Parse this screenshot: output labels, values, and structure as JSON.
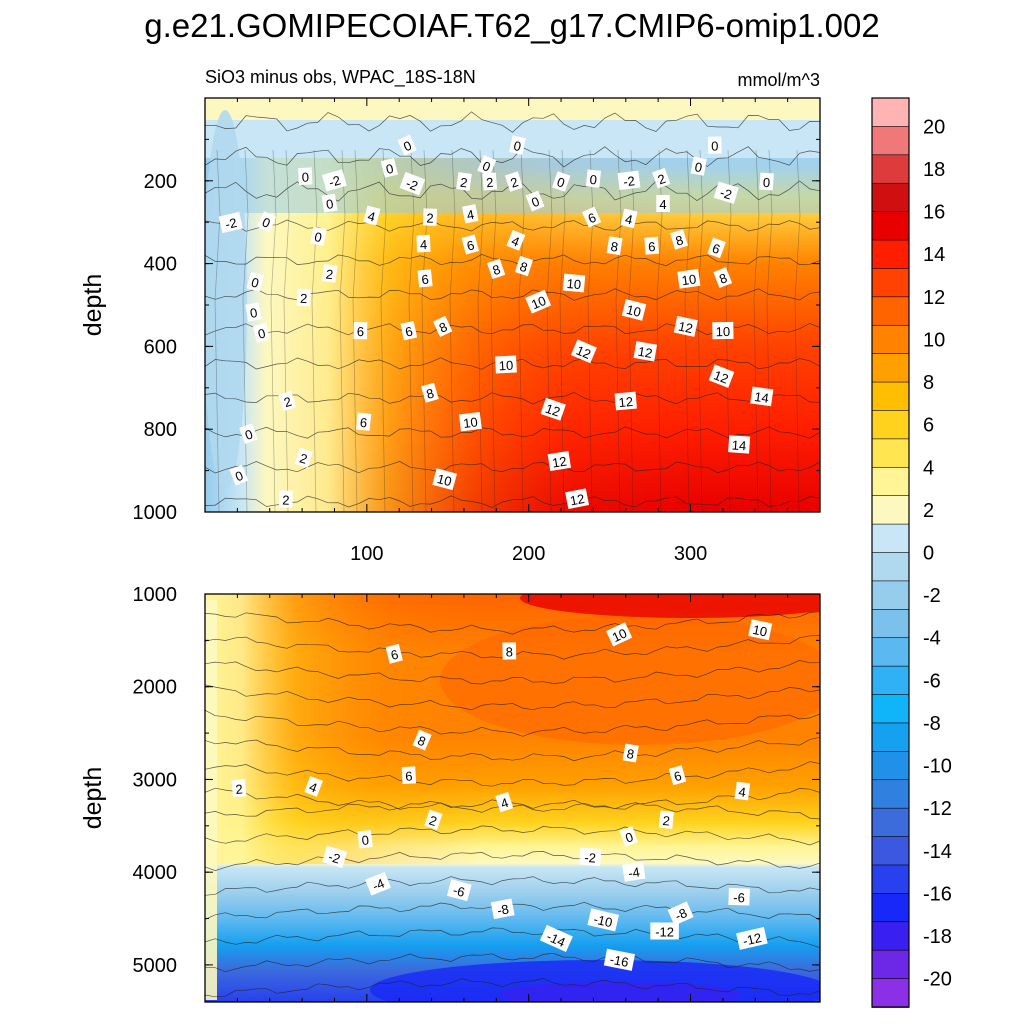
{
  "chart_data": {
    "type": "heatmap",
    "title": "g.e21.GOMIPECOIAF.T62_g17.CMIP6-omip1.002",
    "subtitle_left": "SiO3 minus obs, WPAC_18S-18N",
    "subtitle_right": "mmol/m^3",
    "xlabel": "",
    "xlim": [
      0,
      380
    ],
    "x_ticks": [
      "100",
      "200",
      "300"
    ],
    "panels": [
      {
        "name": "upper",
        "ylabel": "depth",
        "ylim": [
          0,
          1000
        ],
        "y_ticks": [
          "200",
          "400",
          "600",
          "800",
          "1000"
        ],
        "contour_labels": [
          {
            "x": 125,
            "y": 115,
            "v": "0"
          },
          {
            "x": 193,
            "y": 115,
            "v": "0"
          },
          {
            "x": 315,
            "y": 115,
            "v": "0"
          },
          {
            "x": 114,
            "y": 170,
            "v": "0"
          },
          {
            "x": 174,
            "y": 164,
            "v": "0"
          },
          {
            "x": 305,
            "y": 166,
            "v": "0"
          },
          {
            "x": 62,
            "y": 190,
            "v": "0"
          },
          {
            "x": 80,
            "y": 200,
            "v": "-2"
          },
          {
            "x": 128,
            "y": 208,
            "v": "-2"
          },
          {
            "x": 160,
            "y": 203,
            "v": "2"
          },
          {
            "x": 176,
            "y": 203,
            "v": "2"
          },
          {
            "x": 191,
            "y": 203,
            "v": "2"
          },
          {
            "x": 220,
            "y": 203,
            "v": "0"
          },
          {
            "x": 240,
            "y": 196,
            "v": "0"
          },
          {
            "x": 262,
            "y": 200,
            "v": "-2"
          },
          {
            "x": 282,
            "y": 195,
            "v": "2"
          },
          {
            "x": 322,
            "y": 230,
            "v": "-2"
          },
          {
            "x": 347,
            "y": 203,
            "v": "0"
          },
          {
            "x": 77,
            "y": 255,
            "v": "0"
          },
          {
            "x": 204,
            "y": 250,
            "v": "0"
          },
          {
            "x": 103,
            "y": 285,
            "v": "4"
          },
          {
            "x": 139,
            "y": 289,
            "v": "2"
          },
          {
            "x": 164,
            "y": 281,
            "v": "4"
          },
          {
            "x": 239,
            "y": 289,
            "v": "6"
          },
          {
            "x": 262,
            "y": 292,
            "v": "4"
          },
          {
            "x": 283,
            "y": 256,
            "v": "4"
          },
          {
            "x": 16,
            "y": 302,
            "v": "-2"
          },
          {
            "x": 38,
            "y": 300,
            "v": "0"
          },
          {
            "x": 70,
            "y": 335,
            "v": "0"
          },
          {
            "x": 135,
            "y": 353,
            "v": "4"
          },
          {
            "x": 164,
            "y": 355,
            "v": "6"
          },
          {
            "x": 192,
            "y": 345,
            "v": "4"
          },
          {
            "x": 253,
            "y": 358,
            "v": "8"
          },
          {
            "x": 276,
            "y": 358,
            "v": "6"
          },
          {
            "x": 293,
            "y": 343,
            "v": "8"
          },
          {
            "x": 316,
            "y": 363,
            "v": "6"
          },
          {
            "x": 77,
            "y": 425,
            "v": "2"
          },
          {
            "x": 136,
            "y": 437,
            "v": "6"
          },
          {
            "x": 180,
            "y": 414,
            "v": "8"
          },
          {
            "x": 197,
            "y": 407,
            "v": "8"
          },
          {
            "x": 228,
            "y": 448,
            "v": "10"
          },
          {
            "x": 299,
            "y": 438,
            "v": "10"
          },
          {
            "x": 320,
            "y": 435,
            "v": "8"
          },
          {
            "x": 31,
            "y": 445,
            "v": "0"
          },
          {
            "x": 61,
            "y": 483,
            "v": "2"
          },
          {
            "x": 30,
            "y": 518,
            "v": "0"
          },
          {
            "x": 206,
            "y": 493,
            "v": "10"
          },
          {
            "x": 265,
            "y": 513,
            "v": "10"
          },
          {
            "x": 96,
            "y": 563,
            "v": "6"
          },
          {
            "x": 126,
            "y": 563,
            "v": "6"
          },
          {
            "x": 147,
            "y": 553,
            "v": "8"
          },
          {
            "x": 297,
            "y": 553,
            "v": "12"
          },
          {
            "x": 320,
            "y": 563,
            "v": "10"
          },
          {
            "x": 35,
            "y": 568,
            "v": "0"
          },
          {
            "x": 234,
            "y": 613,
            "v": "12"
          },
          {
            "x": 272,
            "y": 613,
            "v": "12"
          },
          {
            "x": 186,
            "y": 645,
            "v": "10"
          },
          {
            "x": 139,
            "y": 713,
            "v": "8"
          },
          {
            "x": 319,
            "y": 673,
            "v": "12"
          },
          {
            "x": 344,
            "y": 722,
            "v": "14"
          },
          {
            "x": 260,
            "y": 733,
            "v": "12"
          },
          {
            "x": 51,
            "y": 733,
            "v": "2"
          },
          {
            "x": 215,
            "y": 753,
            "v": "12"
          },
          {
            "x": 98,
            "y": 783,
            "v": "6"
          },
          {
            "x": 164,
            "y": 783,
            "v": "10"
          },
          {
            "x": 27,
            "y": 812,
            "v": "0"
          },
          {
            "x": 61,
            "y": 870,
            "v": "2"
          },
          {
            "x": 330,
            "y": 838,
            "v": "14"
          },
          {
            "x": 219,
            "y": 878,
            "v": "12"
          },
          {
            "x": 21,
            "y": 912,
            "v": "0"
          },
          {
            "x": 148,
            "y": 922,
            "v": "10"
          },
          {
            "x": 50,
            "y": 970,
            "v": "2"
          },
          {
            "x": 230,
            "y": 969,
            "v": "12"
          }
        ]
      },
      {
        "name": "lower",
        "ylabel": "depth",
        "ylim": [
          1000,
          5400
        ],
        "y_ticks": [
          "1000",
          "2000",
          "3000",
          "4000",
          "5000"
        ],
        "contour_labels": [
          {
            "x": 256,
            "y": 1440,
            "v": "10"
          },
          {
            "x": 343,
            "y": 1390,
            "v": "10"
          },
          {
            "x": 188,
            "y": 1620,
            "v": "8"
          },
          {
            "x": 117,
            "y": 1650,
            "v": "6"
          },
          {
            "x": 134,
            "y": 2580,
            "v": "8"
          },
          {
            "x": 263,
            "y": 2720,
            "v": "8"
          },
          {
            "x": 126,
            "y": 2960,
            "v": "6"
          },
          {
            "x": 292,
            "y": 2960,
            "v": "6"
          },
          {
            "x": 67,
            "y": 3080,
            "v": "4"
          },
          {
            "x": 332,
            "y": 3130,
            "v": "4"
          },
          {
            "x": 21,
            "y": 3100,
            "v": "2"
          },
          {
            "x": 185,
            "y": 3250,
            "v": "4"
          },
          {
            "x": 141,
            "y": 3440,
            "v": "2"
          },
          {
            "x": 285,
            "y": 3440,
            "v": "2"
          },
          {
            "x": 99,
            "y": 3650,
            "v": "0"
          },
          {
            "x": 262,
            "y": 3620,
            "v": "0"
          },
          {
            "x": 80,
            "y": 3840,
            "v": "-2"
          },
          {
            "x": 238,
            "y": 3840,
            "v": "-2"
          },
          {
            "x": 265,
            "y": 4000,
            "v": "-4"
          },
          {
            "x": 107,
            "y": 4130,
            "v": "-4"
          },
          {
            "x": 157,
            "y": 4200,
            "v": "-6"
          },
          {
            "x": 330,
            "y": 4270,
            "v": "-6"
          },
          {
            "x": 184,
            "y": 4400,
            "v": "-8"
          },
          {
            "x": 294,
            "y": 4450,
            "v": "-8"
          },
          {
            "x": 246,
            "y": 4520,
            "v": "-10"
          },
          {
            "x": 284,
            "y": 4640,
            "v": "-12"
          },
          {
            "x": 338,
            "y": 4720,
            "v": "-12"
          },
          {
            "x": 217,
            "y": 4720,
            "v": "-14"
          },
          {
            "x": 256,
            "y": 4950,
            "v": "-16"
          }
        ]
      }
    ],
    "colorbar": {
      "levels": [
        "20",
        "18",
        "16",
        "14",
        "12",
        "10",
        "8",
        "6",
        "4",
        "2",
        "0",
        "-2",
        "-4",
        "-6",
        "-8",
        "-10",
        "-12",
        "-14",
        "-16",
        "-18",
        "-20"
      ],
      "colors": [
        "#ffb4b4",
        "#f07878",
        "#de3c3c",
        "#d01010",
        "#e80000",
        "#ff1e00",
        "#ff4200",
        "#ff6400",
        "#ff8200",
        "#ffa000",
        "#ffbe00",
        "#ffd21e",
        "#ffe650",
        "#fff596",
        "#fdf8c0",
        "#c8e6f5",
        "#b0d8ee",
        "#96ccec",
        "#7cc0ec",
        "#5cb8f0",
        "#30b0f5",
        "#10b4f8",
        "#15a0f0",
        "#2090e8",
        "#3080e0",
        "#3c6cdc",
        "#3c58e0",
        "#2840ee",
        "#1828f8",
        "#3a20f0",
        "#6c28e6",
        "#8c30e8"
      ]
    }
  }
}
